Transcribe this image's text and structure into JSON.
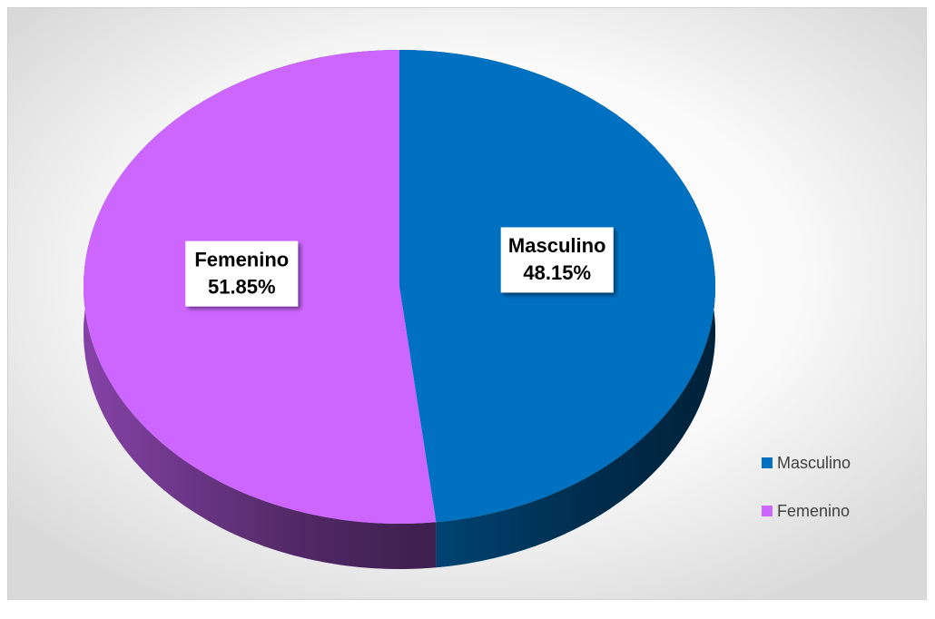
{
  "chart_data": {
    "type": "pie",
    "categories": [
      "Masculino",
      "Femenino"
    ],
    "values": [
      48.15,
      51.85
    ],
    "value_labels": [
      "48.15%",
      "51.85%"
    ],
    "colors": [
      "#0070c0",
      "#cc66ff"
    ],
    "legend": "right"
  }
}
